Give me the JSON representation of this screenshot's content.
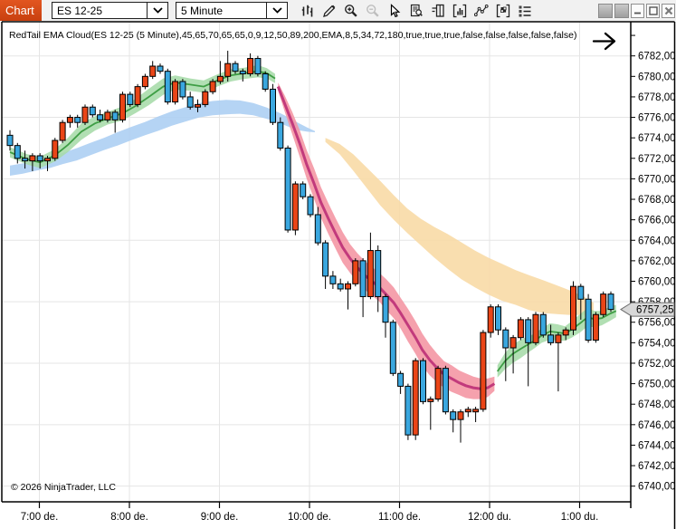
{
  "toolbar": {
    "tab_label": "Chart",
    "instrument_value": "ES 12-25",
    "interval_value": "5 Minute",
    "icons": [
      "chart-style-icon",
      "drawing-tools-icon",
      "zoom-in-icon",
      "zoom-out-icon",
      "cursor-icon",
      "data-box-icon",
      "chart-trader-icon",
      "indicators-icon",
      "drawing-objects-icon",
      "strategies-icon",
      "properties-icon"
    ],
    "window_buttons": [
      "instrument-link",
      "interval-link",
      "minimize",
      "maximize",
      "close"
    ]
  },
  "chart": {
    "indicator_label": "RedTail EMA Cloud(ES 12-25 (5 Minute),45,65,70,65,65,0,9,12,50,89,200,EMA,8,5,34,72,180,true,true,true,false,false,false,false,false)",
    "copyright": "© 2026 NinjaTrader, LLC",
    "price_marker_label": "6757,25",
    "go_to_end_arrow": "right-arrow"
  },
  "chart_data": {
    "type": "candlestick",
    "instrument": "ES 12-25",
    "interval": "5 Minute",
    "start_time": "6:40",
    "bar_interval_minutes": 5,
    "last_price": 6757.25,
    "colors": {
      "up_candle": "#ea4517",
      "down_candle": "#3aa7df",
      "candle_outline": "#000000",
      "grid": "#e5e5e5",
      "fast_cloud_bull_fill": "#a6dba9",
      "fast_cloud_bull_line": "#3e9e44",
      "fast_cloud_bear_fill": "#f494a2",
      "fast_cloud_bear_line": "#c23a7c",
      "slow_cloud_bull_fill": "#abcef2",
      "slow_cloud_bear_fill": "#f8d9a4",
      "marker_bg": "#d8d8d8",
      "tab_accent": "#d8491a"
    },
    "price_axis": {
      "labels": [
        "6782,00",
        "6780,00",
        "6778,00",
        "6776,00",
        "6774,00",
        "6772,00",
        "6770,00",
        "6768,00",
        "6766,00",
        "6764,00",
        "6762,00",
        "6760,00",
        "6758,00",
        "6756,00",
        "6754,00",
        "6752,00",
        "6750,00",
        "6748,00",
        "6746,00",
        "6744,00",
        "6742,00",
        "6740,00"
      ],
      "top_label_price": 6782,
      "tick_step": 2
    },
    "time_axis": {
      "labels": [
        "7:00 de.",
        "8:00 de.",
        "9:00 de.",
        "10:00 de.",
        "11:00 de.",
        "12:00 du.",
        "1:00 du."
      ]
    },
    "gridline_prices": [
      6782,
      6776,
      6770,
      6764,
      6758,
      6752,
      6746,
      6740
    ],
    "candles": [
      [
        6774.25,
        6774.75,
        6772.75,
        6773.25
      ],
      [
        6773.25,
        6773.5,
        6771.5,
        6772
      ],
      [
        6772,
        6772.75,
        6771,
        6771.75
      ],
      [
        6771.75,
        6772.5,
        6770.75,
        6772.25
      ],
      [
        6772.25,
        6772.5,
        6771,
        6771.75
      ],
      [
        6771.75,
        6772.25,
        6770.75,
        6772
      ],
      [
        6772,
        6774,
        6771.75,
        6773.75
      ],
      [
        6773.75,
        6775.75,
        6773.5,
        6775.5
      ],
      [
        6775.5,
        6776.25,
        6775,
        6776
      ],
      [
        6776,
        6776.25,
        6775,
        6775.5
      ],
      [
        6775.5,
        6777.25,
        6775.25,
        6777
      ],
      [
        6777,
        6777.25,
        6776,
        6776.25
      ],
      [
        6776.25,
        6776.75,
        6775.5,
        6775.75
      ],
      [
        6775.75,
        6776.75,
        6775.5,
        6776.5
      ],
      [
        6776.5,
        6776.75,
        6774.5,
        6775.75
      ],
      [
        6775.75,
        6778.5,
        6775.5,
        6778.25
      ],
      [
        6778.25,
        6778.5,
        6777,
        6777.25
      ],
      [
        6777.25,
        6779.25,
        6777,
        6779
      ],
      [
        6779,
        6780.25,
        6778.75,
        6780
      ],
      [
        6780,
        6781.5,
        6779.75,
        6781
      ],
      [
        6781,
        6781.25,
        6780.25,
        6780.5
      ],
      [
        6780.5,
        6780.75,
        6777.25,
        6777.5
      ],
      [
        6777.5,
        6779.75,
        6777.25,
        6779.5
      ],
      [
        6779.5,
        6779.75,
        6777.75,
        6778
      ],
      [
        6778,
        6778.5,
        6776.75,
        6777
      ],
      [
        6777,
        6777.75,
        6776.5,
        6777.25
      ],
      [
        6777.25,
        6778.75,
        6777,
        6778.5
      ],
      [
        6778.5,
        6779.75,
        6778.25,
        6779.5
      ],
      [
        6779.5,
        6781.5,
        6779.25,
        6780
      ],
      [
        6780,
        6782.5,
        6779.5,
        6781.25
      ],
      [
        6781.25,
        6781.5,
        6780.25,
        6780.5
      ],
      [
        6780.5,
        6780.75,
        6779.5,
        6780.25
      ],
      [
        6780.25,
        6782.25,
        6780,
        6781.75
      ],
      [
        6781.75,
        6782,
        6780,
        6780.25
      ],
      [
        6780.25,
        6780.5,
        6778.5,
        6778.75
      ],
      [
        6778.75,
        6779.25,
        6775.25,
        6775.5
      ],
      [
        6775.5,
        6776,
        6772.75,
        6773
      ],
      [
        6773,
        6773.25,
        6764.75,
        6765
      ],
      [
        6765,
        6769.75,
        6764.5,
        6769.5
      ],
      [
        6769.5,
        6769.75,
        6768,
        6768.25
      ],
      [
        6768.25,
        6768.5,
        6766.25,
        6766.5
      ],
      [
        6766.5,
        6767.25,
        6763.5,
        6763.75
      ],
      [
        6763.75,
        6764,
        6759.25,
        6760.5
      ],
      [
        6760.5,
        6761,
        6759.25,
        6759.75
      ],
      [
        6759.75,
        6760.25,
        6759,
        6759.25
      ],
      [
        6759.25,
        6760,
        6757.25,
        6759.75
      ],
      [
        6759.75,
        6762.25,
        6759.5,
        6762
      ],
      [
        6762,
        6762.25,
        6756.5,
        6758.5
      ],
      [
        6758.5,
        6764.75,
        6758.25,
        6763
      ],
      [
        6763,
        6763.5,
        6757,
        6758.5
      ],
      [
        6758.5,
        6758.75,
        6754.5,
        6756
      ],
      [
        6756,
        6756.25,
        6750.75,
        6751
      ],
      [
        6751,
        6751.25,
        6749,
        6749.75
      ],
      [
        6749.75,
        6750,
        6744.5,
        6745
      ],
      [
        6745,
        6752.5,
        6744.5,
        6752.25
      ],
      [
        6752.25,
        6752.5,
        6748,
        6748.25
      ],
      [
        6748.25,
        6748.75,
        6745.5,
        6748.5
      ],
      [
        6748.5,
        6751.75,
        6748.25,
        6751.5
      ],
      [
        6751.5,
        6751.75,
        6747,
        6747.25
      ],
      [
        6747.25,
        6747.5,
        6745.25,
        6746.5
      ],
      [
        6746.5,
        6747.5,
        6744.25,
        6747.25
      ],
      [
        6747.25,
        6747.75,
        6746.75,
        6747.5
      ],
      [
        6747.25,
        6747.75,
        6746.25,
        6747.5
      ],
      [
        6747.5,
        6755.25,
        6747.25,
        6755
      ],
      [
        6755,
        6757.75,
        6754.5,
        6757.5
      ],
      [
        6757.5,
        6757.75,
        6754.75,
        6755.25
      ],
      [
        6755.25,
        6755.5,
        6750.25,
        6753.5
      ],
      [
        6753.5,
        6754.75,
        6751,
        6754.5
      ],
      [
        6754.5,
        6756.5,
        6754.25,
        6756.25
      ],
      [
        6756.25,
        6756.5,
        6749.75,
        6754
      ],
      [
        6754,
        6757,
        6753.75,
        6756.75
      ],
      [
        6756.75,
        6757,
        6754.5,
        6754.75
      ],
      [
        6754.75,
        6755.75,
        6753.75,
        6754
      ],
      [
        6754,
        6755,
        6749.25,
        6754.75
      ],
      [
        6754.75,
        6755.5,
        6754.25,
        6755.25
      ],
      [
        6755.25,
        6760,
        6754.75,
        6759.5
      ],
      [
        6759.5,
        6759.75,
        6756.25,
        6758.25
      ],
      [
        6758.25,
        6758.75,
        6754,
        6754.25
      ],
      [
        6754.25,
        6757,
        6754,
        6756.75
      ],
      [
        6756.75,
        6759,
        6756.5,
        6758.75
      ],
      [
        6758.75,
        6759,
        6757,
        6757.25
      ]
    ],
    "clouds": [
      {
        "name": "slow-ema-cloud-bullish",
        "fill": "#abcef2",
        "line": null,
        "points": [
          [
            0,
            6770.8,
            0.5
          ],
          [
            1.7,
            6771.0,
            0.5
          ],
          [
            3.5,
            6771.3,
            0.5
          ],
          [
            5.3,
            6771.6,
            0.55
          ],
          [
            7.1,
            6772.0,
            0.55
          ],
          [
            8.9,
            6772.4,
            0.6
          ],
          [
            10.7,
            6772.9,
            0.6
          ],
          [
            12.5,
            6773.4,
            0.6
          ],
          [
            14.3,
            6773.9,
            0.65
          ],
          [
            16.1,
            6774.4,
            0.65
          ],
          [
            18,
            6774.9,
            0.65
          ],
          [
            19.8,
            6775.4,
            0.7
          ],
          [
            21.6,
            6775.9,
            0.7
          ],
          [
            23.4,
            6776.3,
            0.7
          ],
          [
            25.2,
            6776.7,
            0.7
          ],
          [
            27,
            6776.9,
            0.7
          ],
          [
            28.8,
            6777.0,
            0.7
          ],
          [
            30.6,
            6777.0,
            0.65
          ],
          [
            32.4,
            6776.8,
            0.6
          ],
          [
            34.2,
            6776.4,
            0.55
          ],
          [
            36,
            6775.9,
            0.5
          ],
          [
            37.2,
            6775.5,
            0.45
          ],
          [
            38.4,
            6775.1,
            0.35
          ],
          [
            39.6,
            6774.8,
            0.2
          ],
          [
            40.6,
            6774.6,
            0.05
          ]
        ]
      },
      {
        "name": "slow-ema-cloud-bearish",
        "fill": "#f8d9a4",
        "line": null,
        "points": [
          [
            42,
            6773.8,
            0.2
          ],
          [
            43.9,
            6772.9,
            0.5
          ],
          [
            45.7,
            6771.6,
            0.8
          ],
          [
            47.5,
            6770.1,
            1.0
          ],
          [
            49.3,
            6768.6,
            1.2
          ],
          [
            51.1,
            6767.2,
            1.2
          ],
          [
            52.9,
            6765.9,
            1.2
          ],
          [
            54.7,
            6764.8,
            1.3
          ],
          [
            56.5,
            6763.8,
            1.5
          ],
          [
            58.3,
            6762.9,
            1.7
          ],
          [
            60.1,
            6762.0,
            1.8
          ],
          [
            61.9,
            6761.2,
            1.8
          ],
          [
            63.7,
            6760.5,
            1.8
          ],
          [
            65.5,
            6759.9,
            1.8
          ],
          [
            67.3,
            6759.4,
            1.7
          ],
          [
            69.1,
            6758.9,
            1.7
          ],
          [
            71,
            6758.5,
            1.6
          ],
          [
            72.8,
            6758.2,
            1.4
          ],
          [
            74.6,
            6757.9,
            1.2
          ],
          [
            76.4,
            6757.6,
            0.9
          ],
          [
            77.7,
            6757.4,
            0.5
          ]
        ]
      },
      {
        "name": "fast-ema-cloud-bullish-early",
        "fill": "#a6dba9",
        "line": "#3e9e44",
        "points": [
          [
            0,
            6772.6,
            0.5
          ],
          [
            1,
            6772.3,
            0.5
          ],
          [
            2.3,
            6771.9,
            0.5
          ],
          [
            4,
            6771.6,
            0.55
          ],
          [
            6,
            6772.3,
            0.6
          ],
          [
            7.7,
            6773.3,
            0.7
          ],
          [
            9.5,
            6774.6,
            0.8
          ],
          [
            11.3,
            6775.4,
            0.7
          ],
          [
            13,
            6775.9,
            0.6
          ],
          [
            15,
            6776.4,
            0.7
          ],
          [
            16.7,
            6777.1,
            0.7
          ],
          [
            18.5,
            6778.0,
            0.8
          ],
          [
            20.4,
            6779.0,
            0.8
          ],
          [
            22,
            6779.4,
            0.7
          ],
          [
            24,
            6779.2,
            0.6
          ],
          [
            25.8,
            6779.0,
            0.6
          ],
          [
            27.6,
            6779.6,
            0.6
          ],
          [
            29.4,
            6780.1,
            0.6
          ],
          [
            31.2,
            6780.3,
            0.55
          ],
          [
            33,
            6780.5,
            0.6
          ],
          [
            34.2,
            6780.3,
            0.5
          ],
          [
            35.3,
            6779.8,
            0.45
          ]
        ]
      },
      {
        "name": "fast-ema-cloud-bearish",
        "fill": "#f494a2",
        "line": "#c23a7c",
        "points": [
          [
            35.7,
            6779.0,
            0.4
          ],
          [
            36.6,
            6777.3,
            0.8
          ],
          [
            37.6,
            6775.4,
            1.1
          ],
          [
            38.6,
            6773.4,
            1.3
          ],
          [
            39.5,
            6771.4,
            1.4
          ],
          [
            40.5,
            6769.5,
            1.5
          ],
          [
            41.4,
            6767.7,
            1.5
          ],
          [
            42.4,
            6766.1,
            1.5
          ],
          [
            43.4,
            6764.6,
            1.5
          ],
          [
            44.3,
            6763.3,
            1.5
          ],
          [
            45.3,
            6762.2,
            1.4
          ],
          [
            46.3,
            6761.3,
            1.4
          ],
          [
            47.2,
            6760.6,
            1.4
          ],
          [
            48.2,
            6760.0,
            1.4
          ],
          [
            49.2,
            6759.4,
            1.4
          ],
          [
            50.1,
            6758.7,
            1.5
          ],
          [
            51.1,
            6757.9,
            1.5
          ],
          [
            52,
            6756.9,
            1.5
          ],
          [
            53,
            6755.7,
            1.6
          ],
          [
            54,
            6754.5,
            1.6
          ],
          [
            54.9,
            6753.3,
            1.6
          ],
          [
            55.9,
            6752.3,
            1.5
          ],
          [
            56.9,
            6751.5,
            1.4
          ],
          [
            57.8,
            6750.9,
            1.3
          ],
          [
            58.8,
            6750.5,
            1.3
          ],
          [
            59.8,
            6750.1,
            1.2
          ],
          [
            60.7,
            6749.8,
            1.2
          ],
          [
            61.7,
            6749.6,
            1.1
          ],
          [
            62.7,
            6749.5,
            1.0
          ],
          [
            63.6,
            6749.6,
            0.9
          ],
          [
            64.5,
            6750.0,
            0.7
          ]
        ]
      },
      {
        "name": "fast-ema-cloud-bullish-late",
        "fill": "#a6dba9",
        "line": "#3e9e44",
        "points": [
          [
            64.9,
            6751.2,
            0.6
          ],
          [
            65.9,
            6752.2,
            0.8
          ],
          [
            66.9,
            6752.9,
            0.9
          ],
          [
            68,
            6753.4,
            0.9
          ],
          [
            68.9,
            6753.8,
            0.8
          ],
          [
            69.9,
            6754.2,
            0.7
          ],
          [
            70.8,
            6754.7,
            0.7
          ],
          [
            71.9,
            6755.1,
            0.8
          ],
          [
            72.9,
            6755.0,
            0.8
          ],
          [
            73.9,
            6754.9,
            0.7
          ],
          [
            74.8,
            6755.3,
            0.8
          ],
          [
            75.9,
            6755.9,
            0.9
          ],
          [
            76.9,
            6756.5,
            0.9
          ],
          [
            77.8,
            6756.3,
            0.8
          ],
          [
            78.8,
            6756.4,
            0.7
          ],
          [
            79.8,
            6756.8,
            0.7
          ],
          [
            80.7,
            6757.1,
            0.6
          ]
        ]
      }
    ]
  }
}
